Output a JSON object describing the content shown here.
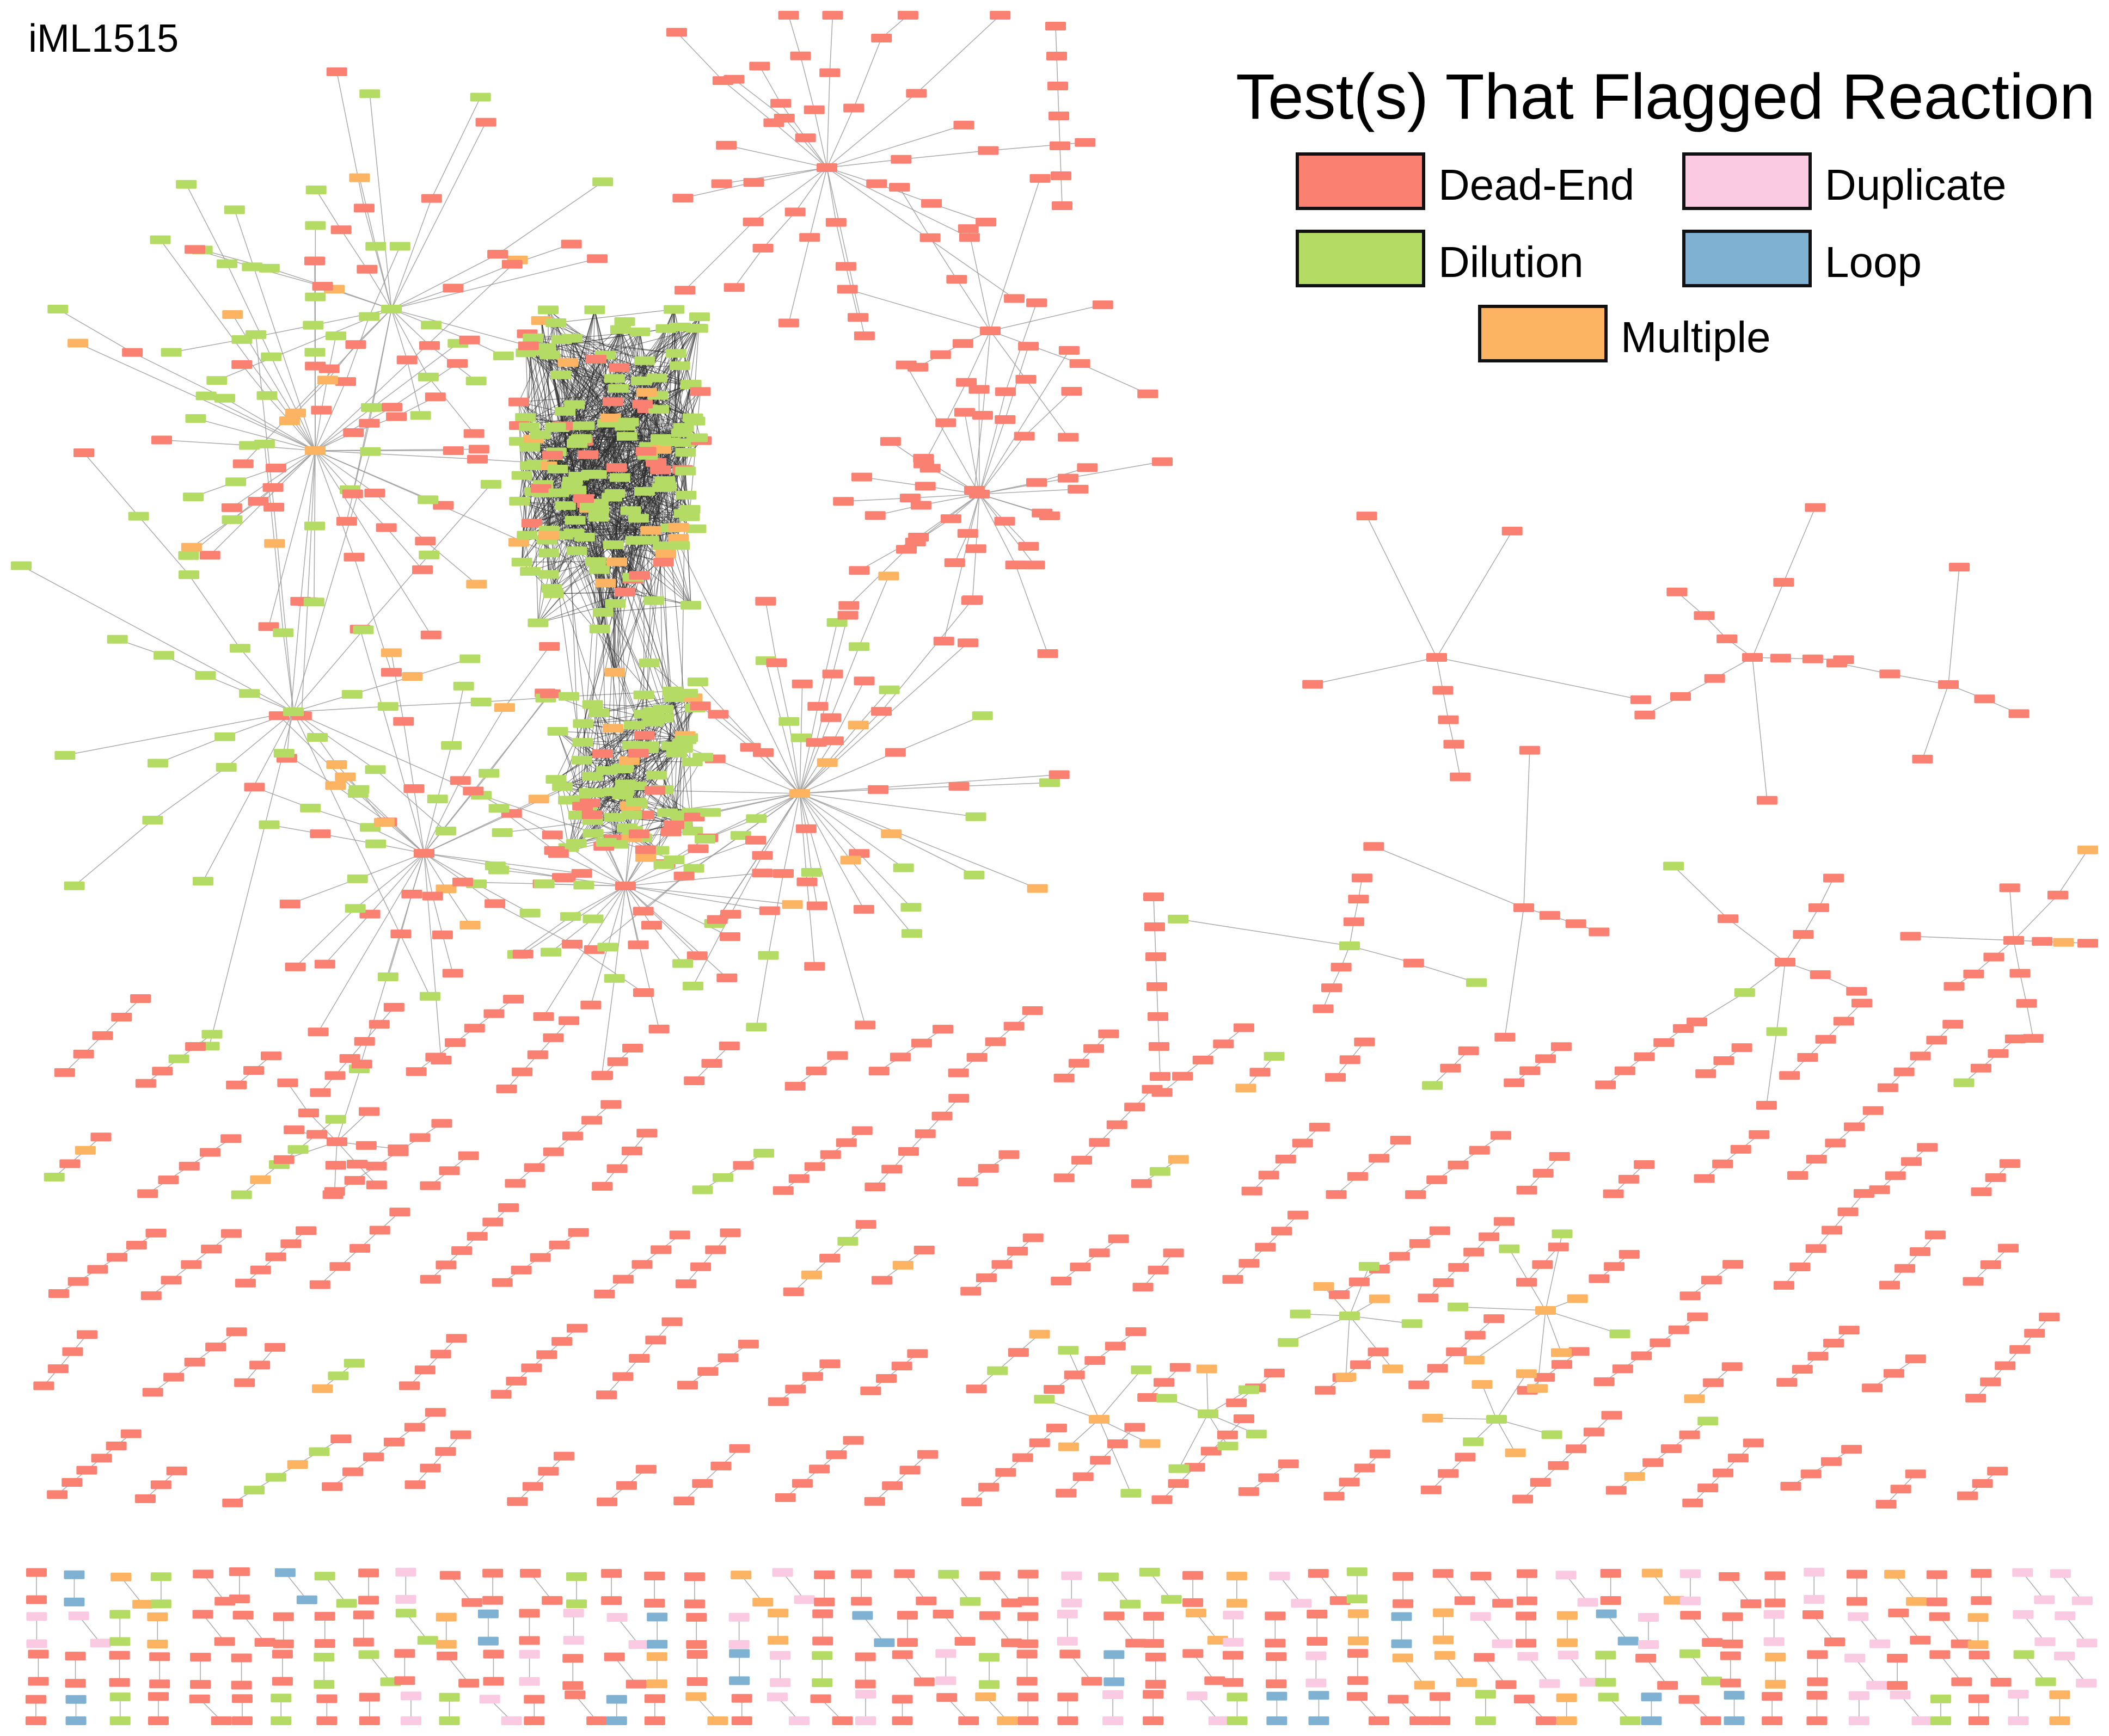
{
  "model_name": "iML1515",
  "legend": {
    "title": "Test(s) That Flagged Reaction",
    "items": [
      {
        "key": "dead_end",
        "label": "Dead-End",
        "color": "#fa8072"
      },
      {
        "key": "duplicate",
        "label": "Duplicate",
        "color": "#f9cae2"
      },
      {
        "key": "dilution",
        "label": "Dilution",
        "color": "#b4dc64"
      },
      {
        "key": "loop",
        "label": "Loop",
        "color": "#7fb1d2"
      },
      {
        "key": "multiple",
        "label": "Multiple",
        "color": "#fcb462"
      }
    ]
  },
  "node_colors": {
    "dead_end": "#fa8072",
    "dilution": "#b4dc64",
    "multiple": "#fcb462",
    "duplicate": "#f9cae2",
    "loop": "#7fb1d2"
  },
  "edge_color": "#9a9a9a",
  "core_edge_color": "#2a2a2a"
}
